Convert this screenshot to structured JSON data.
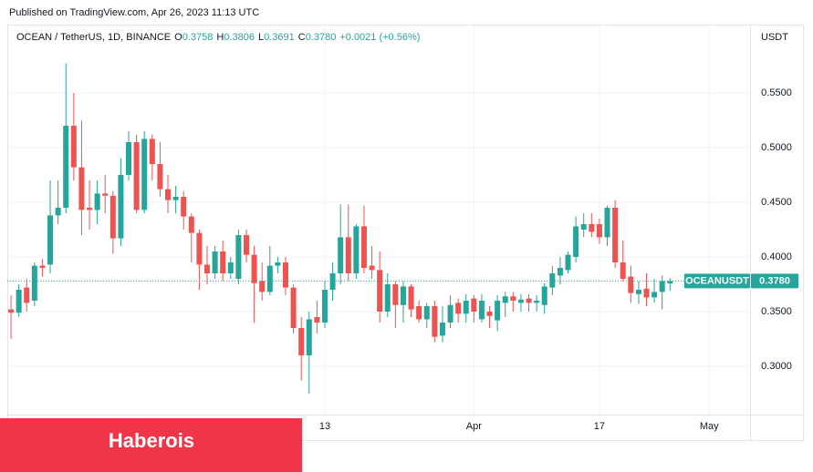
{
  "published": "Published on TradingView.com, Apr 26, 2023 11:13 UTC",
  "banner": "Haberois",
  "chart_data": {
    "type": "candlestick",
    "symbol": "OCEAN / TetherUS, 1D, BINANCE",
    "ohlc_legend": [
      {
        "key": "O",
        "value": "0.3758"
      },
      {
        "key": "H",
        "value": "0.3806"
      },
      {
        "key": "L",
        "value": "0.3691"
      },
      {
        "key": "C",
        "value": "0.3780"
      }
    ],
    "change": "+0.0021 (+0.56%)",
    "currency": "USDT",
    "ticker": "OCEANUSDT",
    "last_price": {
      "value": 0.378,
      "label": "0.3780"
    },
    "up_color": "#26a69a",
    "down_color": "#ef5350",
    "grid": true,
    "xlim": [
      -0.47,
      94.2
    ],
    "xticks": [
      {
        "value": 40,
        "label": "13"
      },
      {
        "value": 59,
        "label": "Apr"
      },
      {
        "value": 75,
        "label": "17"
      },
      {
        "value": 89,
        "label": "May"
      }
    ],
    "ylim": [
      0.2558,
      0.6117
    ],
    "yticks": [
      {
        "value": 0.3,
        "label": "0.3000"
      },
      {
        "value": 0.35,
        "label": "0.3500"
      },
      {
        "value": 0.4,
        "label": "0.4000"
      },
      {
        "value": 0.45,
        "label": "0.4500"
      },
      {
        "value": 0.5,
        "label": "0.5000"
      },
      {
        "value": 0.55,
        "label": "0.5500"
      }
    ],
    "open": [
      0.352,
      0.349,
      0.372,
      0.36,
      0.392,
      0.393,
      0.438,
      0.445,
      0.52,
      0.482,
      0.445,
      0.443,
      0.458,
      0.456,
      0.417,
      0.475,
      0.505,
      0.443,
      0.508,
      0.485,
      0.462,
      0.452,
      0.455,
      0.437,
      0.422,
      0.393,
      0.385,
      0.405,
      0.385,
      0.38,
      0.42,
      0.402,
      0.378,
      0.368,
      0.392,
      0.395,
      0.372,
      0.335,
      0.31,
      0.345,
      0.34,
      0.37,
      0.385,
      0.418,
      0.385,
      0.428,
      0.392,
      0.388,
      0.35,
      0.375,
      0.356,
      0.373,
      0.355,
      0.343,
      0.355,
      0.328,
      0.34,
      0.358,
      0.348,
      0.362,
      0.343,
      0.35,
      0.342,
      0.358,
      0.364,
      0.358,
      0.362,
      0.358,
      0.356,
      0.372,
      0.383,
      0.388,
      0.4,
      0.425,
      0.43,
      0.43,
      0.418,
      0.445,
      0.395,
      0.382,
      0.366,
      0.371,
      0.363,
      0.368,
      0.3758
    ],
    "high": [
      0.365,
      0.375,
      0.38,
      0.395,
      0.398,
      0.47,
      0.47,
      0.577,
      0.55,
      0.525,
      0.47,
      0.47,
      0.475,
      0.46,
      0.49,
      0.515,
      0.512,
      0.515,
      0.512,
      0.505,
      0.475,
      0.465,
      0.46,
      0.44,
      0.425,
      0.41,
      0.41,
      0.415,
      0.4,
      0.425,
      0.425,
      0.41,
      0.395,
      0.41,
      0.4,
      0.4,
      0.375,
      0.345,
      0.35,
      0.36,
      0.378,
      0.395,
      0.448,
      0.448,
      0.43,
      0.447,
      0.41,
      0.405,
      0.385,
      0.378,
      0.378,
      0.375,
      0.36,
      0.358,
      0.36,
      0.355,
      0.365,
      0.362,
      0.366,
      0.365,
      0.366,
      0.355,
      0.365,
      0.368,
      0.368,
      0.366,
      0.366,
      0.365,
      0.376,
      0.392,
      0.4,
      0.405,
      0.437,
      0.44,
      0.44,
      0.435,
      0.447,
      0.452,
      0.415,
      0.392,
      0.378,
      0.385,
      0.38,
      0.383,
      0.3806
    ],
    "low": [
      0.325,
      0.345,
      0.35,
      0.355,
      0.382,
      0.385,
      0.43,
      0.44,
      0.47,
      0.42,
      0.425,
      0.43,
      0.44,
      0.403,
      0.41,
      0.47,
      0.44,
      0.44,
      0.47,
      0.455,
      0.44,
      0.44,
      0.425,
      0.395,
      0.37,
      0.375,
      0.38,
      0.378,
      0.38,
      0.375,
      0.395,
      0.34,
      0.36,
      0.365,
      0.385,
      0.365,
      0.33,
      0.287,
      0.275,
      0.33,
      0.335,
      0.36,
      0.375,
      0.378,
      0.38,
      0.385,
      0.38,
      0.34,
      0.345,
      0.335,
      0.34,
      0.345,
      0.34,
      0.335,
      0.322,
      0.322,
      0.335,
      0.34,
      0.34,
      0.34,
      0.34,
      0.335,
      0.332,
      0.345,
      0.35,
      0.35,
      0.35,
      0.35,
      0.348,
      0.365,
      0.375,
      0.385,
      0.395,
      0.418,
      0.418,
      0.412,
      0.41,
      0.39,
      0.378,
      0.358,
      0.357,
      0.355,
      0.358,
      0.352,
      0.3691
    ],
    "close": [
      0.349,
      0.37,
      0.358,
      0.392,
      0.39,
      0.438,
      0.445,
      0.52,
      0.482,
      0.443,
      0.443,
      0.458,
      0.456,
      0.417,
      0.475,
      0.505,
      0.443,
      0.508,
      0.485,
      0.462,
      0.452,
      0.455,
      0.437,
      0.422,
      0.393,
      0.385,
      0.405,
      0.385,
      0.395,
      0.42,
      0.402,
      0.376,
      0.368,
      0.392,
      0.395,
      0.372,
      0.335,
      0.31,
      0.343,
      0.34,
      0.37,
      0.385,
      0.418,
      0.385,
      0.428,
      0.39,
      0.388,
      0.35,
      0.375,
      0.356,
      0.373,
      0.352,
      0.343,
      0.355,
      0.327,
      0.34,
      0.356,
      0.348,
      0.36,
      0.35,
      0.36,
      0.346,
      0.36,
      0.364,
      0.36,
      0.361,
      0.358,
      0.36,
      0.373,
      0.385,
      0.39,
      0.402,
      0.428,
      0.43,
      0.423,
      0.418,
      0.445,
      0.395,
      0.38,
      0.367,
      0.37,
      0.363,
      0.368,
      0.378,
      0.378
    ]
  }
}
